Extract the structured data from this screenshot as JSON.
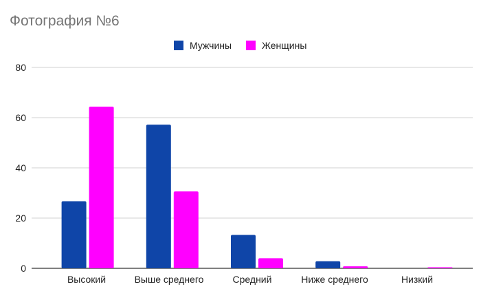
{
  "chart_data": {
    "type": "bar",
    "title": "Фотография №6",
    "xlabel": "",
    "ylabel": "",
    "ylim": [
      0,
      80
    ],
    "yticks": [
      0,
      20,
      40,
      60,
      80
    ],
    "grid": true,
    "legend_position": "top",
    "categories": [
      "Высокий",
      "Выше среднего",
      "Средний",
      "Ниже среднего",
      "Низкий"
    ],
    "series": [
      {
        "name": "Мужчины",
        "color": "#0f45a8",
        "values": [
          26.7,
          57.2,
          13.3,
          2.8,
          0
        ]
      },
      {
        "name": "Женщины",
        "color": "#ff00ff",
        "values": [
          64.4,
          30.6,
          4.0,
          0.8,
          0.4
        ]
      }
    ]
  }
}
